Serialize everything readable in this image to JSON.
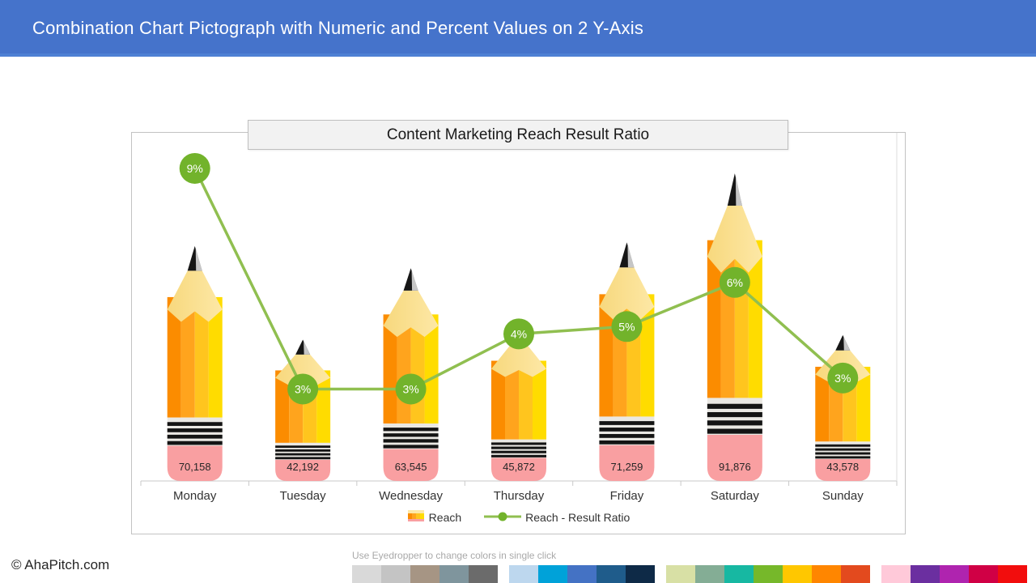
{
  "header": {
    "title": "Combination Chart Pictograph with Numeric and Percent Values on 2 Y-Axis"
  },
  "chart": {
    "title": "Content Marketing Reach Result Ratio",
    "legend": [
      {
        "label": "Reach",
        "icon": "pencil-bar-swatch"
      },
      {
        "label": "Reach - Result Ratio",
        "icon": "green-line-marker"
      }
    ]
  },
  "chart_data": {
    "type": "combo",
    "title": "Content Marketing Reach Result Ratio",
    "categories": [
      "Monday",
      "Tuesday",
      "Wednesday",
      "Thursday",
      "Friday",
      "Saturday",
      "Sunday"
    ],
    "series": [
      {
        "name": "Reach",
        "type": "bar",
        "style": "pencil-pictograph",
        "axis": "left",
        "values": [
          70158,
          42192,
          63545,
          45872,
          71259,
          91876,
          43578
        ],
        "data_labels": [
          "70,158",
          "42,192",
          "63,545",
          "45,872",
          "71,259",
          "91,876",
          "43,578"
        ]
      },
      {
        "name": "Reach - Result Ratio",
        "type": "line",
        "axis": "right",
        "values_pct": [
          9,
          3,
          3,
          4,
          5,
          6,
          3
        ],
        "data_labels": [
          "9%",
          "3%",
          "3%",
          "4%",
          "5%",
          "6%",
          "3%"
        ],
        "precise_pct": [
          9.0,
          3.0,
          3.0,
          4.5,
          4.7,
          5.9,
          3.3
        ]
      }
    ],
    "ylim_left": [
      0,
      104000
    ],
    "ylim_right_pct": [
      0,
      10
    ],
    "legend_position": "bottom",
    "grid": false
  },
  "colors": {
    "header_bg": "#4573CB",
    "header_accent": "#4E80D4",
    "pencil_stripes": [
      "#FB8C00",
      "#FFA41D",
      "#FFC51E",
      "#FFDC00"
    ],
    "wood_dark": "#F7D87D",
    "wood_light": "#FDE8A6",
    "tip_black": "#161616",
    "tip_gray": "#C6C6C6",
    "ferrule": "#EAE8E3",
    "ferrule_stripe": "#141414",
    "eraser": "#F99FA1",
    "line": "#90BF50",
    "marker": "#72B32B",
    "axis": "#C9C9C9",
    "plot_right_border": "#DCDCDC",
    "container_border": "#C3C3C3",
    "title_box_bg": "#F2F2F2",
    "title_box_border": "#BFBFBF"
  },
  "footer": {
    "copyright": "© AhaPitch.com",
    "eyedropper_hint": "Use Eyedropper to change colors in single click",
    "swatch_groups": [
      [
        "#D9D9D9",
        "#C4C4C4",
        "#A69584",
        "#7F959D",
        "#6B6B6B"
      ],
      [
        "#BDD7EE",
        "#00A2D9",
        "#4472C4",
        "#1F5C8B",
        "#0E2A47"
      ],
      [
        "#D8E0A5",
        "#84AD95",
        "#17B8A2",
        "#76B82A",
        "#FFC700",
        "#FF8600",
        "#E34A1E"
      ],
      [
        "#FFC9D9",
        "#6B2FA0",
        "#AF24AF",
        "#D00045",
        "#F20D0D"
      ]
    ]
  }
}
